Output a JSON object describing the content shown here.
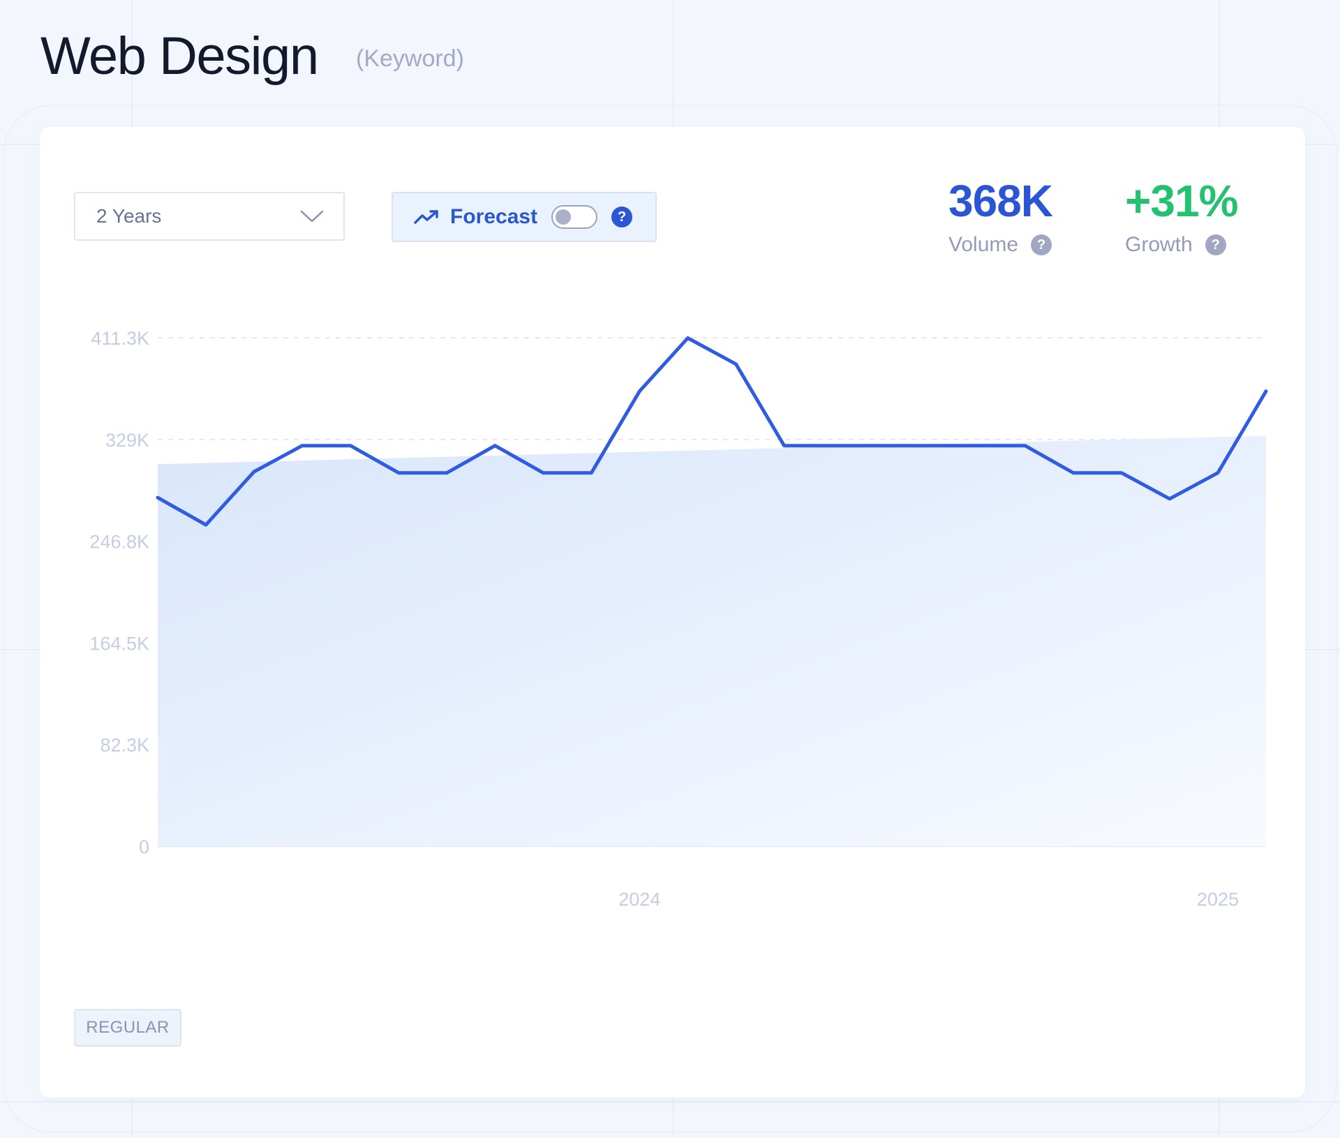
{
  "header": {
    "title": "Web Design",
    "tag": "(Keyword)"
  },
  "controls": {
    "range_select": {
      "value": "2 Years",
      "icon": "chevron-down-icon"
    },
    "forecast": {
      "label": "Forecast",
      "icon": "trending-up-icon",
      "toggle_on": false,
      "help_icon": "help-icon"
    }
  },
  "metrics": {
    "volume": {
      "value": "368K",
      "label": "Volume",
      "color": "#2a56d6"
    },
    "growth": {
      "value": "+31%",
      "label": "Growth",
      "color": "#24c270"
    }
  },
  "badge": {
    "label": "REGULAR"
  },
  "colors": {
    "line": "#2f5ce0",
    "area": "#dde9fb"
  },
  "chart_data": {
    "type": "line",
    "y_ticks": [
      "0",
      "82.3K",
      "164.5K",
      "246.8K",
      "329K",
      "411.3K"
    ],
    "y_tick_values": [
      0,
      82300,
      164500,
      246800,
      329000,
      411300
    ],
    "ylim": [
      0,
      411300
    ],
    "x_tick_labels": [
      {
        "label": "2024",
        "index": 10
      },
      {
        "label": "2025",
        "index": 22
      }
    ],
    "grid": true,
    "series": [
      {
        "values": [
          282000,
          260000,
          303000,
          324000,
          324000,
          302000,
          302000,
          324000,
          302000,
          302000,
          368000,
          411000,
          390000,
          324000,
          324000,
          324000,
          324000,
          324000,
          324000,
          302000,
          302000,
          281000,
          302000,
          368000
        ]
      }
    ],
    "trend_area": {
      "start": 309000,
      "end": 332000
    }
  }
}
